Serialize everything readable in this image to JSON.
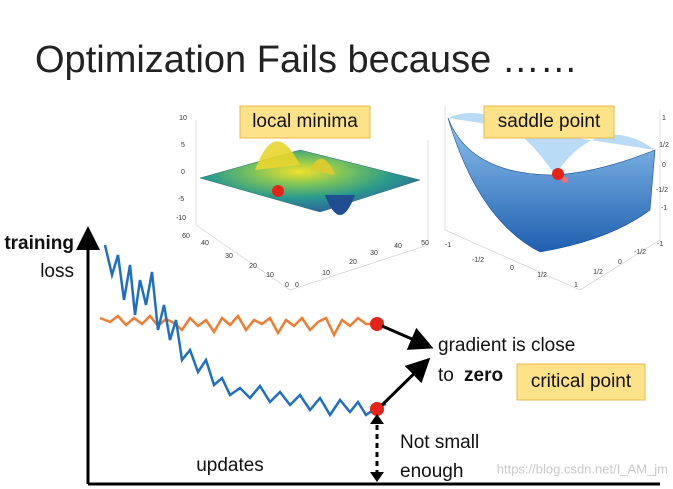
{
  "title": "Optimization Fails because ……",
  "plots": [
    {
      "label": "local minima",
      "z_ticks": [
        "10",
        "5",
        "0",
        "-5",
        "-10"
      ],
      "y_ticks": [
        "60",
        "40",
        "30",
        "20",
        "10",
        "0"
      ],
      "x_ticks": [
        "0",
        "10",
        "20",
        "30",
        "40",
        "50"
      ]
    },
    {
      "label": "saddle point",
      "z_ticks": [
        "1",
        "1/2",
        "0",
        "-1/2",
        "-1"
      ],
      "y_ticks": [
        "-1",
        "-1/2",
        "0",
        "1/2",
        "1"
      ],
      "x_ticks": [
        "1/2",
        "0",
        "-1/2",
        "-1"
      ]
    }
  ],
  "graph": {
    "y_label_1": "training",
    "y_label_2": "loss",
    "x_label": "updates"
  },
  "annotations": {
    "gradient_line1": "gradient is close",
    "gradient_line2": "to",
    "gradient_bold": "zero",
    "critical": "critical point",
    "not_small_1": "Not small",
    "not_small_2": "enough"
  },
  "watermark": "https://blog.csdn.net/I_AM_jm"
}
